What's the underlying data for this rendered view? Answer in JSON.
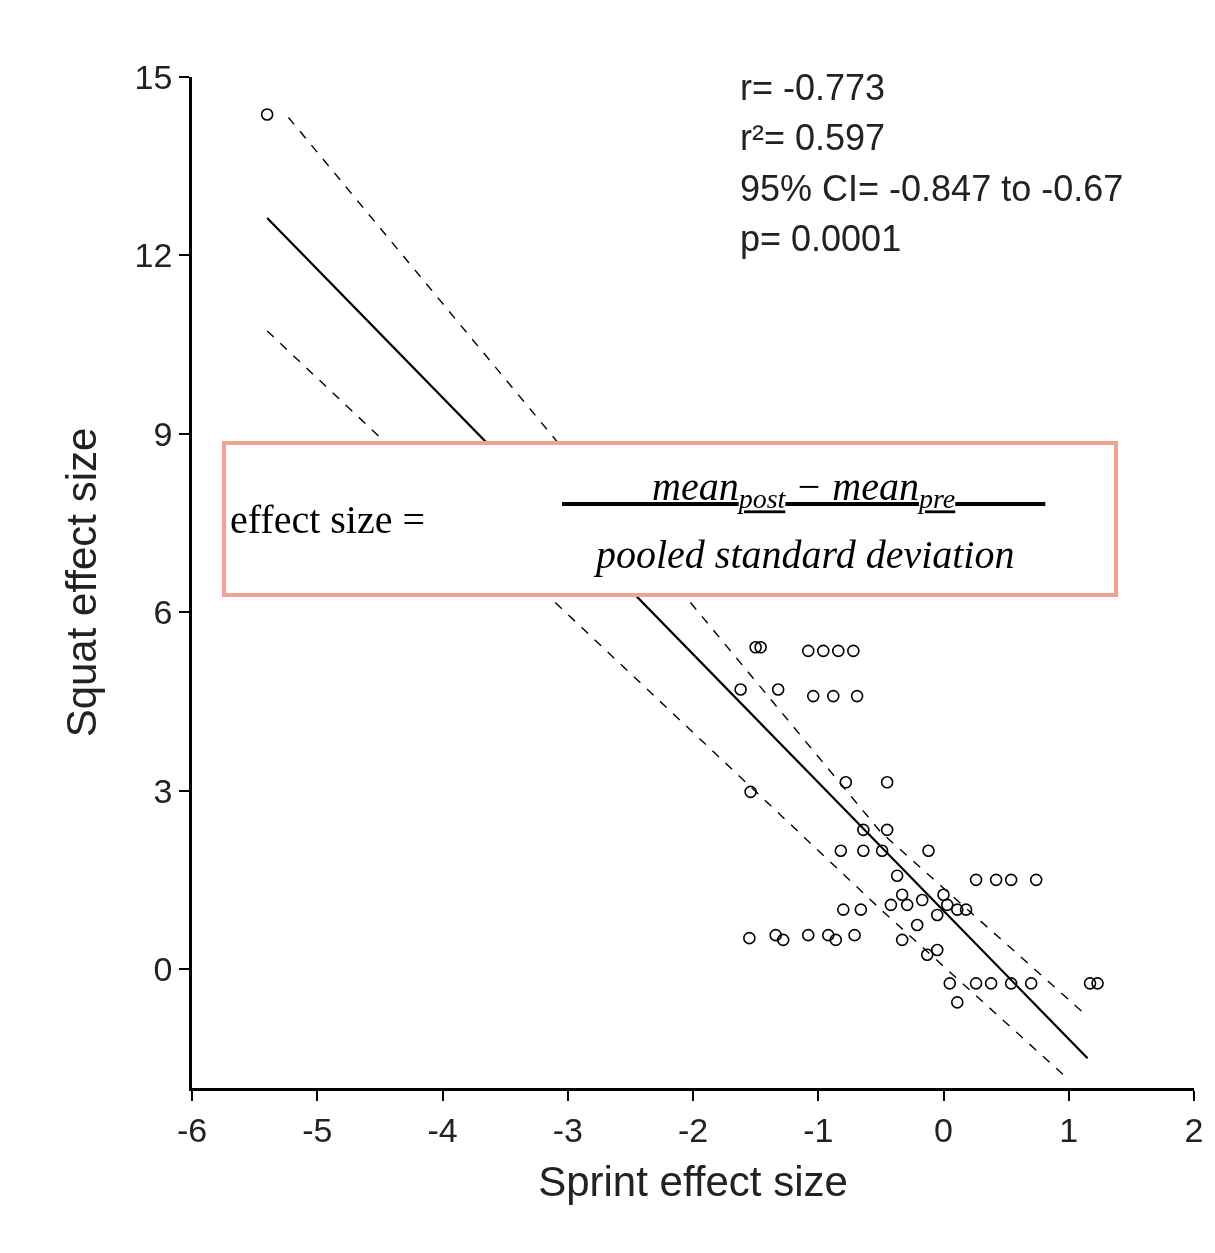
{
  "chart_data": {
    "type": "scatter",
    "xlabel": "Sprint effect size",
    "ylabel": "Squat effect size",
    "xlim": [
      -6,
      2
    ],
    "ylim": [
      -2,
      15
    ],
    "xticks": [
      -6,
      -5,
      -4,
      -3,
      -2,
      -1,
      0,
      1,
      2
    ],
    "yticks": [
      0,
      3,
      6,
      9,
      12,
      15
    ],
    "annotations": [
      "r= -0.773",
      "r²= 0.597",
      "95% CI= -0.847 to -0.67",
      "p= 0.0001",
      "effect size =",
      "mean$_{post}$ − mean$_{pre}$",
      "pooled standard deviation"
    ],
    "series": [
      {
        "marker": "circle",
        "color": "#000000",
        "x": [
          -5.4,
          -1.5,
          -1.46,
          -1.08,
          -0.96,
          -0.84,
          -0.72,
          -1.62,
          -1.32,
          -1.04,
          -0.88,
          -0.69,
          -1.54,
          -0.78,
          -0.45,
          -0.64,
          -0.45,
          -0.82,
          -0.64,
          -0.49,
          -0.12,
          0.26,
          0.42,
          0.54,
          0.74,
          -0.37,
          -0.8,
          -0.66,
          -1.55,
          -1.34,
          -1.28,
          -1.08,
          -0.92,
          -0.86,
          -0.71,
          -0.33,
          -0.42,
          -0.29,
          -0.17,
          -0.05,
          0.03,
          0.11,
          0.18,
          -0.33,
          0.0,
          -0.21,
          -0.13,
          -0.05,
          0.05,
          0.11,
          0.26,
          0.38,
          0.54,
          0.7,
          1.17,
          1.23
        ],
        "values": [
          14.37,
          5.41,
          5.41,
          5.35,
          5.35,
          5.35,
          5.35,
          4.7,
          4.7,
          4.59,
          4.59,
          4.59,
          2.98,
          3.14,
          3.14,
          2.34,
          2.34,
          1.99,
          1.99,
          1.99,
          1.99,
          1.5,
          1.5,
          1.5,
          1.5,
          1.57,
          1.0,
          1.0,
          0.52,
          0.57,
          0.49,
          0.57,
          0.57,
          0.49,
          0.57,
          0.49,
          1.08,
          1.08,
          1.16,
          0.91,
          1.08,
          1.0,
          1.0,
          1.25,
          1.25,
          0.74,
          0.24,
          0.32,
          -0.24,
          -0.56,
          -0.24,
          -0.24,
          -0.24,
          -0.24,
          -0.24,
          -0.24
        ]
      },
      {
        "type": "line",
        "line_style": "solid",
        "color": "#000000",
        "x": [
          -5.4,
          1.15
        ],
        "values": [
          12.63,
          -1.5
        ]
      },
      {
        "type": "line",
        "line_style": "dashed",
        "color": "#000000",
        "x": [
          -5.23,
          -0.5,
          1.12
        ],
        "values": [
          14.32,
          2.3,
          -0.74
        ]
      },
      {
        "type": "line",
        "line_style": "dashed",
        "color": "#000000",
        "x": [
          -5.4,
          -0.5,
          0.99
        ],
        "values": [
          10.73,
          1.0,
          -1.84
        ]
      }
    ]
  }
}
